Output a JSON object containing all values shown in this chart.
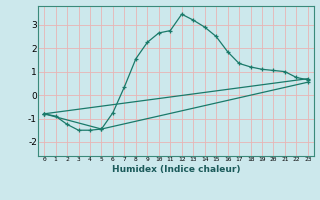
{
  "title": "",
  "xlabel": "Humidex (Indice chaleur)",
  "bg_color": "#cce8ec",
  "grid_color": "#e8b4b4",
  "line_color": "#1a7a6a",
  "xlim": [
    -0.5,
    23.5
  ],
  "ylim": [
    -2.6,
    3.8
  ],
  "xticks": [
    0,
    1,
    2,
    3,
    4,
    5,
    6,
    7,
    8,
    9,
    10,
    11,
    12,
    13,
    14,
    15,
    16,
    17,
    18,
    19,
    20,
    21,
    22,
    23
  ],
  "yticks": [
    -2,
    -1,
    0,
    1,
    2,
    3
  ],
  "line1_x": [
    0,
    1,
    2,
    3,
    4,
    5,
    6,
    7,
    8,
    9,
    10,
    11,
    12,
    13,
    14,
    15,
    16,
    17,
    18,
    19,
    20,
    21,
    22,
    23
  ],
  "line1_y": [
    -0.8,
    -0.9,
    -1.25,
    -1.5,
    -1.5,
    -1.45,
    -0.75,
    0.35,
    1.55,
    2.25,
    2.65,
    2.75,
    3.45,
    3.2,
    2.9,
    2.5,
    1.85,
    1.35,
    1.2,
    1.1,
    1.05,
    1.0,
    0.75,
    0.65
  ],
  "line2_x": [
    0,
    23
  ],
  "line2_y": [
    -0.8,
    0.7
  ],
  "line3_x": [
    0,
    5,
    23
  ],
  "line3_y": [
    -0.8,
    -1.45,
    0.55
  ]
}
